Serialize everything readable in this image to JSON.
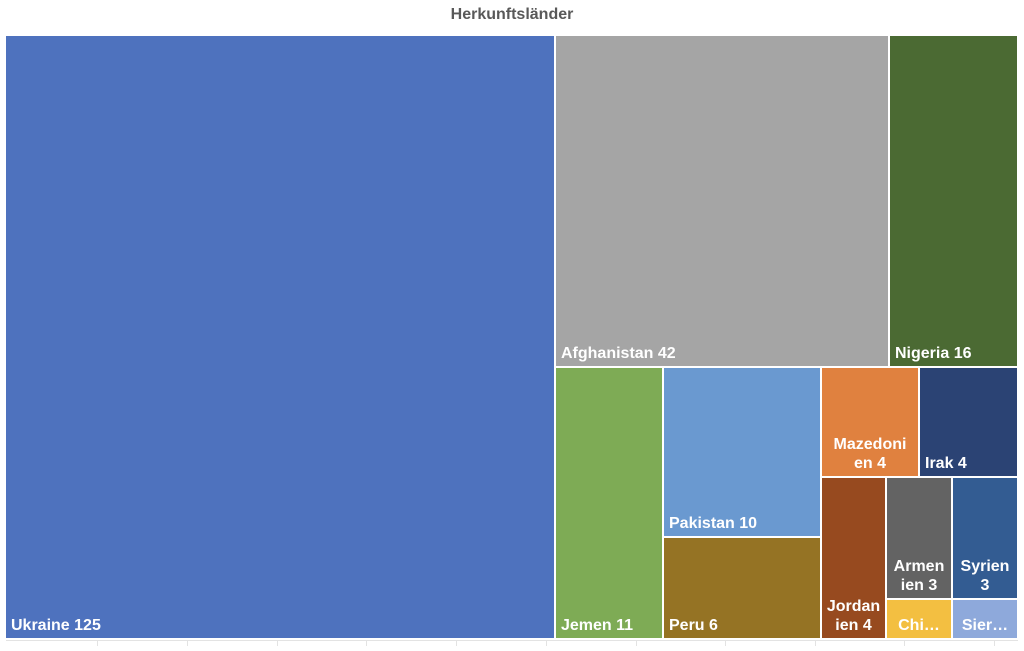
{
  "chart_data": {
    "type": "treemap",
    "title": "Herkunftsländer",
    "items": [
      {
        "name": "Ukraine",
        "value": 125,
        "color": "#4E72BE",
        "label_lines": [
          "Ukraine 125"
        ]
      },
      {
        "name": "Afghanistan",
        "value": 42,
        "color": "#A5A5A5",
        "label_lines": [
          "Afghanistan 42"
        ]
      },
      {
        "name": "Nigeria",
        "value": 16,
        "color": "#4B6A33",
        "label_lines": [
          "Nigeria 16"
        ]
      },
      {
        "name": "Jemen",
        "value": 11,
        "color": "#7EAB55",
        "label_lines": [
          "Jemen 11"
        ]
      },
      {
        "name": "Pakistan",
        "value": 10,
        "color": "#6A99D0",
        "label_lines": [
          "Pakistan 10"
        ]
      },
      {
        "name": "Peru",
        "value": 6,
        "color": "#957324",
        "label_lines": [
          "Peru 6"
        ]
      },
      {
        "name": "Mazedonien",
        "value": 4,
        "color": "#E0813F",
        "label_lines": [
          "Mazedoni",
          "en 4"
        ]
      },
      {
        "name": "Irak",
        "value": 4,
        "color": "#2B4374",
        "label_lines": [
          "Irak 4"
        ]
      },
      {
        "name": "Jordanien",
        "value": 4,
        "color": "#974A1F",
        "label_lines": [
          "Jordan",
          "ien 4"
        ]
      },
      {
        "name": "Armenien",
        "value": 3,
        "color": "#636363",
        "label_lines": [
          "Armen",
          "ien 3"
        ]
      },
      {
        "name": "Syrien",
        "value": 3,
        "color": "#335C92",
        "label_lines": [
          "Syrien",
          "3"
        ]
      },
      {
        "name": "China",
        "value": null,
        "color": "#F3BF41",
        "label_lines": [
          "Chi…"
        ]
      },
      {
        "name": "Sierra Leone",
        "value": null,
        "color": "#8EA9DB",
        "label_lines": [
          "Sier…"
        ]
      }
    ]
  }
}
